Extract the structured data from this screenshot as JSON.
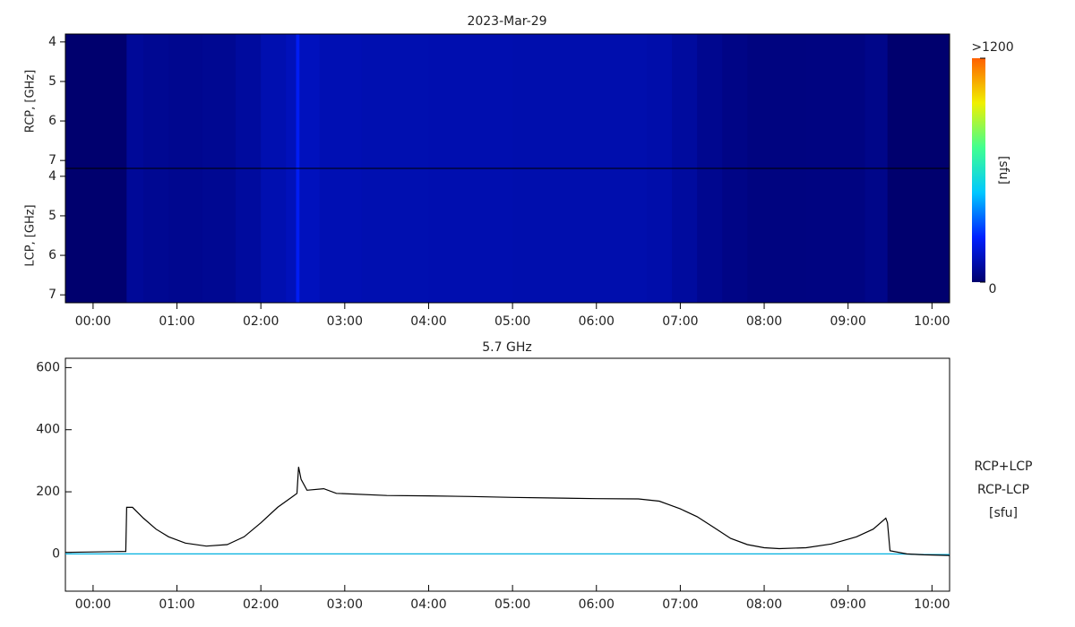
{
  "chart_data": [
    {
      "type": "heatmap",
      "title": "2023-Mar-29",
      "bins": [
        -0.33,
        0.4,
        0.6,
        0.9,
        1.3,
        1.7,
        2.0,
        2.3,
        2.42,
        2.46,
        2.7,
        3.2,
        4.0,
        5.0,
        6.0,
        6.6,
        6.9,
        7.2,
        7.5,
        7.8,
        8.5,
        9.2,
        9.47,
        10.21
      ],
      "panels": [
        {
          "ylabel": "RCP, [GHz]",
          "values": [
            0,
            70,
            60,
            55,
            60,
            80,
            110,
            125,
            220,
            130,
            115,
            110,
            108,
            105,
            105,
            100,
            80,
            55,
            40,
            30,
            32,
            45,
            0
          ]
        },
        {
          "ylabel": "LCP, [GHz]",
          "values": [
            0,
            70,
            60,
            55,
            60,
            80,
            110,
            125,
            220,
            130,
            115,
            110,
            108,
            105,
            105,
            100,
            80,
            55,
            40,
            30,
            32,
            45,
            0
          ]
        }
      ],
      "xlim": [
        -0.33,
        10.21
      ],
      "xticks": [
        {
          "value": 0,
          "label": "00:00"
        },
        {
          "value": 1,
          "label": "01:00"
        },
        {
          "value": 2,
          "label": "02:00"
        },
        {
          "value": 3,
          "label": "03:00"
        },
        {
          "value": 4,
          "label": "04:00"
        },
        {
          "value": 5,
          "label": "05:00"
        },
        {
          "value": 6,
          "label": "06:00"
        },
        {
          "value": 7,
          "label": "07:00"
        },
        {
          "value": 8,
          "label": "08:00"
        },
        {
          "value": 9,
          "label": "09:00"
        },
        {
          "value": 10,
          "label": "10:00"
        }
      ],
      "ylim": [
        3.8,
        7.2
      ],
      "yticks": [
        4,
        5,
        6,
        7
      ],
      "y_reversed": true,
      "colorbar": {
        "zlim": [
          0,
          1200
        ],
        "ticks": [
          {
            "value": 1200,
            "label": ">1200"
          },
          0
        ],
        "label": "[sfu]",
        "colors": [
          "#00006e",
          "#0020ff",
          "#00c8ff",
          "#40ff90",
          "#f0f000",
          "#ff6000"
        ]
      }
    },
    {
      "type": "line",
      "title": "5.7 GHz",
      "x": [
        -0.33,
        0.39,
        0.4,
        0.47,
        0.6,
        0.75,
        0.9,
        1.1,
        1.35,
        1.6,
        1.8,
        2.0,
        2.2,
        2.38,
        2.43,
        2.45,
        2.48,
        2.55,
        2.75,
        2.9,
        3.5,
        4.0,
        4.5,
        5.0,
        5.5,
        6.0,
        6.5,
        6.75,
        6.85,
        7.0,
        7.2,
        7.4,
        7.6,
        7.8,
        8.0,
        8.18,
        8.5,
        8.8,
        9.1,
        9.3,
        9.45,
        9.47,
        9.5,
        9.7,
        9.9,
        10.21
      ],
      "series": [
        {
          "name": "RCP+LCP",
          "color": "#000000",
          "values": [
            5,
            8,
            150,
            150,
            115,
            80,
            55,
            35,
            25,
            30,
            55,
            100,
            150,
            185,
            195,
            280,
            240,
            205,
            210,
            195,
            188,
            187,
            185,
            182,
            180,
            178,
            177,
            170,
            160,
            145,
            120,
            85,
            50,
            30,
            20,
            17,
            20,
            32,
            55,
            80,
            115,
            100,
            10,
            0,
            -3,
            -5
          ]
        },
        {
          "name": "RCP-LCP",
          "color": "#00b0e0",
          "values": [
            0,
            0,
            0,
            0,
            0,
            0,
            0,
            0,
            0,
            0,
            0,
            0,
            0,
            0,
            0,
            0,
            0,
            0,
            0,
            0,
            0,
            0,
            0,
            0,
            0,
            0,
            0,
            0,
            0,
            0,
            0,
            0,
            0,
            0,
            0,
            0,
            0,
            0,
            0,
            0,
            0,
            0,
            0,
            -1,
            -2,
            -2
          ]
        }
      ],
      "xlim": [
        -0.33,
        10.21
      ],
      "xticks": [
        {
          "value": 0,
          "label": "00:00"
        },
        {
          "value": 1,
          "label": "01:00"
        },
        {
          "value": 2,
          "label": "02:00"
        },
        {
          "value": 3,
          "label": "03:00"
        },
        {
          "value": 4,
          "label": "04:00"
        },
        {
          "value": 5,
          "label": "05:00"
        },
        {
          "value": 6,
          "label": "06:00"
        },
        {
          "value": 7,
          "label": "07:00"
        },
        {
          "value": 8,
          "label": "08:00"
        },
        {
          "value": 9,
          "label": "09:00"
        },
        {
          "value": 10,
          "label": "10:00"
        }
      ],
      "ylim": [
        -120,
        630
      ],
      "yticks": [
        0,
        200,
        400,
        600
      ],
      "legend_unit": "[sfu]",
      "legend_unit_color": "#000080"
    }
  ]
}
